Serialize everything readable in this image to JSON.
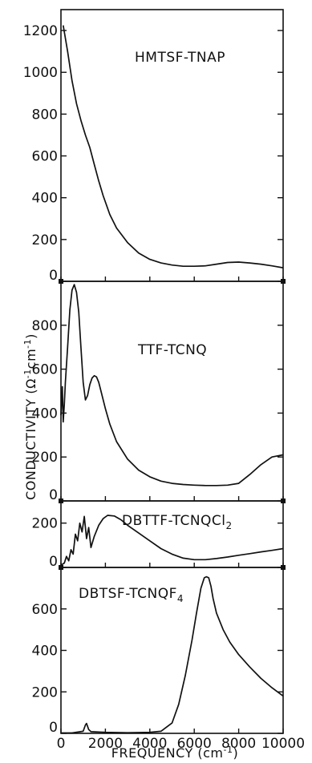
{
  "chart_data": [
    {
      "type": "line",
      "title": "HMTSF-TNAP",
      "ylim": [
        0,
        1300
      ],
      "xlim": [
        0,
        10000
      ],
      "yticks": [
        0,
        200,
        400,
        600,
        800,
        1000,
        1200
      ],
      "ytick_labels": [
        "0",
        "200",
        "400",
        "600",
        "800",
        "1000",
        "1200"
      ],
      "series": [
        {
          "x": [
            100,
            300,
            500,
            700,
            900,
            1100,
            1300,
            1500,
            1700,
            1900,
            2200,
            2500,
            3000,
            3500,
            4000,
            4500,
            5000,
            5500,
            6000,
            6500,
            7000,
            7500,
            8000,
            8500,
            9000,
            9500,
            10000
          ],
          "values": [
            1225,
            1100,
            960,
            850,
            770,
            700,
            640,
            560,
            480,
            410,
            320,
            255,
            185,
            135,
            105,
            88,
            78,
            72,
            72,
            74,
            82,
            90,
            92,
            88,
            82,
            74,
            65
          ]
        }
      ]
    },
    {
      "type": "line",
      "title": "TTF-TCNQ",
      "ylim": [
        0,
        1000
      ],
      "xlim": [
        0,
        10000
      ],
      "yticks": [
        0,
        200,
        400,
        600,
        800
      ],
      "ytick_labels": [
        "0",
        "200",
        "400",
        "600",
        "800"
      ],
      "series": [
        {
          "x": [
            0,
            60,
            100,
            150,
            200,
            300,
            400,
            500,
            600,
            700,
            800,
            900,
            1000,
            1100,
            1200,
            1300,
            1400,
            1500,
            1600,
            1700,
            1800,
            2000,
            2200,
            2500,
            3000,
            3500,
            4000,
            4500,
            5000,
            5500,
            6000,
            6500,
            7000,
            7500,
            8000,
            8500,
            9000,
            9500,
            10000
          ],
          "values": [
            390,
            520,
            360,
            440,
            540,
            700,
            870,
            960,
            985,
            950,
            860,
            700,
            540,
            460,
            480,
            530,
            560,
            570,
            565,
            540,
            500,
            420,
            350,
            270,
            190,
            140,
            110,
            90,
            80,
            75,
            72,
            70,
            70,
            72,
            80,
            120,
            165,
            200,
            210
          ]
        }
      ]
    },
    {
      "type": "line",
      "title": "DBTTF-TCNQCl",
      "title_subscript": "2",
      "ylim": [
        0,
        300
      ],
      "xlim": [
        0,
        10000
      ],
      "yticks": [
        0,
        200
      ],
      "ytick_labels": [
        "0",
        "200"
      ],
      "series": [
        {
          "x": [
            0,
            150,
            250,
            350,
            450,
            550,
            650,
            750,
            850,
            950,
            1050,
            1150,
            1250,
            1350,
            1500,
            1700,
            1900,
            2100,
            2400,
            2700,
            3000,
            3500,
            4000,
            4500,
            5000,
            5500,
            6000,
            6500,
            7000,
            7500,
            8000,
            8500,
            9000,
            9500,
            10000
          ],
          "values": [
            10,
            20,
            50,
            30,
            80,
            60,
            150,
            120,
            200,
            160,
            230,
            130,
            180,
            90,
            140,
            190,
            220,
            235,
            232,
            215,
            190,
            155,
            120,
            85,
            60,
            42,
            35,
            35,
            40,
            47,
            55,
            62,
            70,
            77,
            85
          ]
        }
      ]
    },
    {
      "type": "line",
      "title": "DBTSF-TCNQF",
      "title_subscript": "4",
      "ylim": [
        0,
        800
      ],
      "xlim": [
        0,
        10000
      ],
      "yticks": [
        0,
        200,
        400,
        600
      ],
      "ytick_labels": [
        "0",
        "200",
        "400",
        "600"
      ],
      "xticks": [
        0,
        2000,
        4000,
        6000,
        8000,
        10000
      ],
      "xtick_labels": [
        "0",
        "2000",
        "4000",
        "6000",
        "8000",
        "10000"
      ],
      "xlabel": "FREQUENCY",
      "xlabel_unit_base": "(cm",
      "xlabel_unit_sup": "-1",
      "xlabel_unit_end": ")",
      "series": [
        {
          "x": [
            0,
            500,
            1000,
            1100,
            1150,
            1250,
            1350,
            2000,
            3000,
            4000,
            4500,
            5000,
            5300,
            5600,
            5900,
            6100,
            6300,
            6450,
            6550,
            6650,
            6750,
            6850,
            7000,
            7300,
            7600,
            8000,
            8500,
            9000,
            9500,
            10000
          ],
          "values": [
            2,
            2,
            10,
            40,
            48,
            18,
            8,
            5,
            3,
            5,
            10,
            50,
            140,
            280,
            450,
            580,
            700,
            750,
            755,
            750,
            710,
            650,
            580,
            500,
            440,
            380,
            320,
            265,
            220,
            180
          ]
        }
      ]
    }
  ],
  "ylabel": {
    "text": "CONDUCTIVITY (Ω",
    "sup1": "-1",
    "mid": "cm",
    "sup2": "-1",
    "end": ")"
  }
}
